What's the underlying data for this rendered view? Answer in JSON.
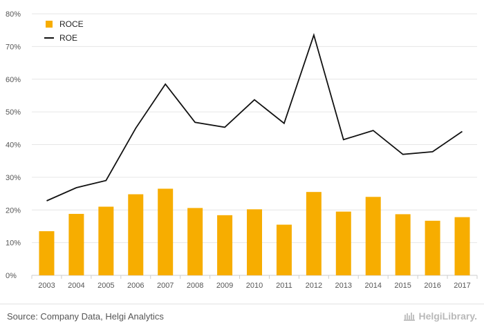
{
  "chart_data": {
    "type": "bar",
    "categories": [
      "2003",
      "2004",
      "2005",
      "2006",
      "2007",
      "2008",
      "2009",
      "2010",
      "2011",
      "2012",
      "2013",
      "2014",
      "2015",
      "2016",
      "2017"
    ],
    "series": [
      {
        "name": "ROCE",
        "type": "bar",
        "color": "#f7ad00",
        "values": [
          13.5,
          18.8,
          21.0,
          24.8,
          26.5,
          20.6,
          18.4,
          20.2,
          15.5,
          25.5,
          19.5,
          24.0,
          18.7,
          16.7,
          17.8
        ]
      },
      {
        "name": "ROE",
        "type": "line",
        "color": "#111111",
        "values": [
          22.8,
          26.8,
          29.0,
          45.0,
          58.5,
          46.8,
          45.3,
          53.7,
          46.5,
          73.5,
          41.5,
          44.3,
          37.0,
          37.8,
          44.0
        ]
      }
    ],
    "ylim": [
      0,
      80
    ],
    "yticks": [
      0,
      10,
      20,
      30,
      40,
      50,
      60,
      70,
      80
    ],
    "ytick_format": "%",
    "grid": true,
    "legend_position": "top-left"
  },
  "footer": {
    "source": "Source: Company Data, Helgi Analytics",
    "logo_text": "HelgiLibrary."
  }
}
